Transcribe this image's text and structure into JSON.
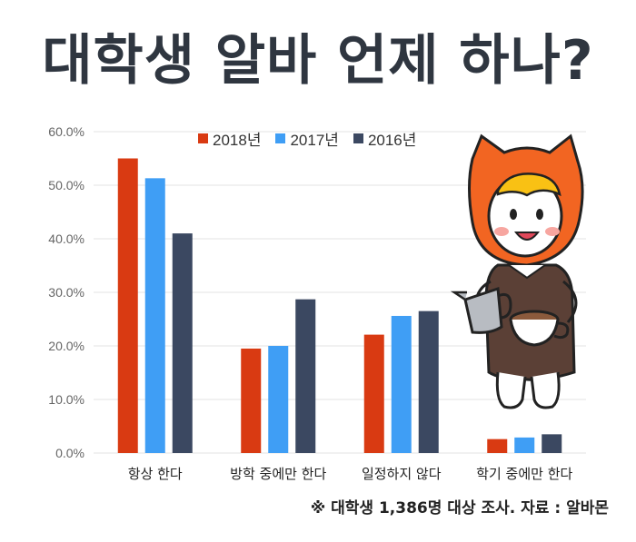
{
  "title": "대학생 알바 언제 하나?",
  "caption": "※ 대학생 1,386명 대상 조사. 자료 : 알바몬",
  "colors": {
    "s2018": "#d93a12",
    "s2017": "#3f9ef5",
    "s2016": "#3b4861"
  },
  "chart_data": {
    "type": "bar",
    "categories": [
      "항상 한다",
      "방학 중에만 한다",
      "일정하지 않다",
      "학기 중에만 한다"
    ],
    "series": [
      {
        "name": "2018년",
        "values": [
          55.0,
          19.5,
          22.1,
          2.6
        ]
      },
      {
        "name": "2017년",
        "values": [
          51.3,
          20.0,
          25.6,
          2.9
        ]
      },
      {
        "name": "2016년",
        "values": [
          41.0,
          28.7,
          26.5,
          3.5
        ]
      }
    ],
    "ylim": [
      0,
      60
    ],
    "yticks": [
      "0.0%",
      "10.0%",
      "20.0%",
      "30.0%",
      "40.0%",
      "50.0%",
      "60.0%"
    ],
    "grid": true,
    "legend": "top"
  }
}
